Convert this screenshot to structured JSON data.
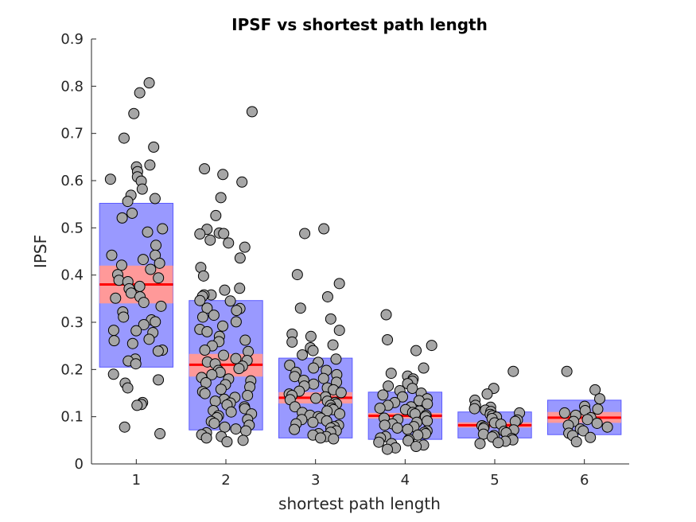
{
  "chart_data": {
    "type": "scatter",
    "title": "IPSF vs shortest path length",
    "xlabel": "shortest path length",
    "ylabel": "IPSF",
    "xlim": [
      0.5,
      6.5
    ],
    "ylim": [
      0,
      0.9
    ],
    "x_ticks": [
      "1",
      "2",
      "3",
      "4",
      "5",
      "6"
    ],
    "y_ticks": [
      "0",
      "0.1",
      "0.2",
      "0.3",
      "0.4",
      "0.5",
      "0.6",
      "0.7",
      "0.8",
      "0.9"
    ],
    "grid": false,
    "colors": {
      "sd_box": "#9999ff",
      "ci_box": "#ff9999",
      "mean_line": "#ff0000",
      "marker_fill": "#a6a6a6",
      "marker_edge": "#000000"
    },
    "groups": [
      {
        "x": 1,
        "mean": 0.38,
        "ci": [
          0.34,
          0.42
        ],
        "sd": [
          0.205,
          0.552
        ],
        "points": [
          0.807,
          0.786,
          0.742,
          0.69,
          0.671,
          0.633,
          0.629,
          0.619,
          0.608,
          0.603,
          0.599,
          0.582,
          0.569,
          0.562,
          0.556,
          0.531,
          0.521,
          0.498,
          0.491,
          0.463,
          0.442,
          0.442,
          0.433,
          0.425,
          0.421,
          0.412,
          0.401,
          0.394,
          0.389,
          0.386,
          0.376,
          0.371,
          0.362,
          0.354,
          0.351,
          0.342,
          0.334,
          0.322,
          0.311,
          0.305,
          0.301,
          0.295,
          0.283,
          0.282,
          0.278,
          0.264,
          0.261,
          0.255,
          0.241,
          0.239,
          0.222,
          0.218,
          0.212,
          0.19,
          0.178,
          0.171,
          0.161,
          0.13,
          0.126,
          0.124,
          0.078,
          0.064
        ]
      },
      {
        "x": 2,
        "mean": 0.21,
        "ci": [
          0.185,
          0.233
        ],
        "sd": [
          0.072,
          0.346
        ],
        "points": [
          0.746,
          0.625,
          0.613,
          0.597,
          0.564,
          0.526,
          0.497,
          0.489,
          0.488,
          0.487,
          0.474,
          0.468,
          0.459,
          0.436,
          0.416,
          0.398,
          0.372,
          0.368,
          0.358,
          0.358,
          0.355,
          0.346,
          0.345,
          0.33,
          0.329,
          0.325,
          0.315,
          0.311,
          0.301,
          0.292,
          0.285,
          0.28,
          0.27,
          0.262,
          0.259,
          0.25,
          0.241,
          0.238,
          0.23,
          0.223,
          0.219,
          0.216,
          0.212,
          0.207,
          0.202,
          0.198,
          0.194,
          0.189,
          0.183,
          0.18,
          0.176,
          0.172,
          0.168,
          0.163,
          0.158,
          0.153,
          0.149,
          0.145,
          0.141,
          0.137,
          0.133,
          0.129,
          0.125,
          0.121,
          0.117,
          0.113,
          0.11,
          0.106,
          0.102,
          0.098,
          0.094,
          0.09,
          0.086,
          0.082,
          0.078,
          0.074,
          0.07,
          0.066,
          0.062,
          0.058,
          0.055,
          0.05,
          0.047
        ]
      },
      {
        "x": 3,
        "mean": 0.14,
        "ci": [
          0.128,
          0.152
        ],
        "sd": [
          0.055,
          0.224
        ],
        "points": [
          0.498,
          0.488,
          0.401,
          0.382,
          0.354,
          0.33,
          0.307,
          0.283,
          0.275,
          0.27,
          0.258,
          0.252,
          0.246,
          0.24,
          0.231,
          0.222,
          0.215,
          0.209,
          0.203,
          0.198,
          0.194,
          0.189,
          0.185,
          0.181,
          0.177,
          0.173,
          0.169,
          0.165,
          0.161,
          0.157,
          0.154,
          0.151,
          0.148,
          0.145,
          0.142,
          0.139,
          0.136,
          0.133,
          0.13,
          0.127,
          0.124,
          0.121,
          0.118,
          0.115,
          0.112,
          0.109,
          0.106,
          0.103,
          0.1,
          0.097,
          0.094,
          0.091,
          0.088,
          0.085,
          0.082,
          0.079,
          0.076,
          0.073,
          0.07,
          0.067,
          0.064,
          0.061,
          0.058,
          0.055,
          0.053
        ]
      },
      {
        "x": 4,
        "mean": 0.102,
        "ci": [
          0.096,
          0.108
        ],
        "sd": [
          0.052,
          0.152
        ],
        "points": [
          0.316,
          0.263,
          0.251,
          0.24,
          0.203,
          0.192,
          0.186,
          0.18,
          0.175,
          0.17,
          0.165,
          0.16,
          0.155,
          0.15,
          0.146,
          0.142,
          0.138,
          0.134,
          0.13,
          0.127,
          0.124,
          0.121,
          0.118,
          0.115,
          0.112,
          0.109,
          0.106,
          0.103,
          0.1,
          0.097,
          0.094,
          0.091,
          0.088,
          0.085,
          0.082,
          0.079,
          0.076,
          0.073,
          0.07,
          0.067,
          0.064,
          0.061,
          0.058,
          0.055,
          0.052,
          0.049,
          0.046,
          0.043,
          0.04,
          0.037,
          0.034,
          0.031
        ]
      },
      {
        "x": 5,
        "mean": 0.082,
        "ci": [
          0.077,
          0.088
        ],
        "sd": [
          0.055,
          0.11
        ],
        "points": [
          0.196,
          0.16,
          0.148,
          0.135,
          0.124,
          0.12,
          0.117,
          0.114,
          0.111,
          0.108,
          0.105,
          0.102,
          0.099,
          0.096,
          0.093,
          0.09,
          0.087,
          0.084,
          0.081,
          0.078,
          0.075,
          0.072,
          0.069,
          0.066,
          0.063,
          0.06,
          0.057,
          0.054,
          0.051,
          0.048,
          0.045,
          0.043
        ]
      },
      {
        "x": 6,
        "mean": 0.098,
        "ci": [
          0.087,
          0.11
        ],
        "sd": [
          0.062,
          0.135
        ],
        "points": [
          0.196,
          0.157,
          0.138,
          0.122,
          0.116,
          0.113,
          0.108,
          0.103,
          0.098,
          0.094,
          0.09,
          0.086,
          0.082,
          0.078,
          0.074,
          0.07,
          0.065,
          0.06,
          0.056,
          0.047
        ]
      }
    ]
  }
}
